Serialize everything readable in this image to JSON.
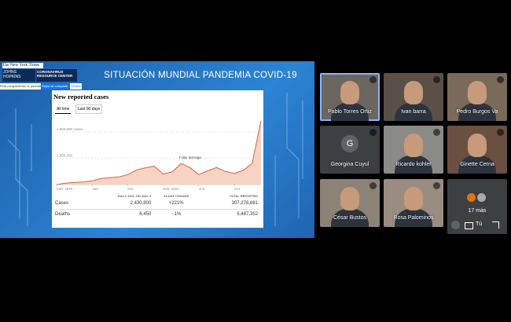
{
  "slide": {
    "title": "SITUACIÓN MUNDIAL PANDEMIA COVID-19",
    "logos": [
      "The New York Times",
      "JOHNS HOPKINS",
      "CORONAVIRUS RESOURCE CENTER"
    ],
    "share_bar": [
      "Está compartiendo la pantalla",
      "Dejar de compartir",
      "Ocultar"
    ],
    "chart": {
      "type": "area",
      "title": "New reported cases",
      "tabs": [
        "All time",
        "Last 90 days"
      ],
      "annotation": "7-day average",
      "x": [
        0,
        1,
        2,
        3,
        4,
        5,
        6,
        7,
        8,
        9,
        10,
        11,
        12,
        13,
        14,
        15,
        16,
        17,
        18,
        19,
        20,
        21,
        22,
        23
      ],
      "values": [
        0,
        50000,
        80000,
        95000,
        140000,
        230000,
        260000,
        290000,
        380000,
        560000,
        640000,
        700000,
        400000,
        480000,
        800000,
        650000,
        380000,
        520000,
        650000,
        500000,
        420000,
        540000,
        800000,
        2430800
      ],
      "xlim": [
        0,
        23
      ],
      "xticks": [
        {
          "value": 0,
          "label": "Feb. 2020"
        },
        {
          "value": 4,
          "label": "Jun."
        },
        {
          "value": 8,
          "label": "Oct."
        },
        {
          "value": 12,
          "label": "Feb. 2021"
        },
        {
          "value": 16,
          "label": "Jun."
        },
        {
          "value": 20,
          "label": "Oct."
        }
      ],
      "ylim": [
        0,
        2600000
      ],
      "yticks": [
        {
          "value": 1000000,
          "label": "1,000,000"
        },
        {
          "value": 2000000,
          "label": "2,000,000 cases"
        }
      ],
      "color": "#d9603b",
      "fill": "#f6d3c4",
      "grid": true
    },
    "table": {
      "headers": [
        "DAILY AVG. ON JAN. 9",
        "14-DAY CHANGE",
        "TOTAL REPORTED"
      ],
      "rows": [
        [
          "Cases",
          "2,430,800",
          "+221%",
          "307,278,881"
        ],
        [
          "Deaths",
          "6,450",
          "−1%",
          "5,487,352"
        ]
      ]
    }
  },
  "participants": [
    "Pablo Torres Ortiz",
    "Ivan barra",
    "Pedro Burgos Va",
    "Georgina Cuyul",
    "Ricardo kohler",
    "Ginette Cerna",
    "César Bustos",
    "Rosa Palominos"
  ],
  "avatar_letter": "G",
  "more": "17 más",
  "self": "Tú"
}
